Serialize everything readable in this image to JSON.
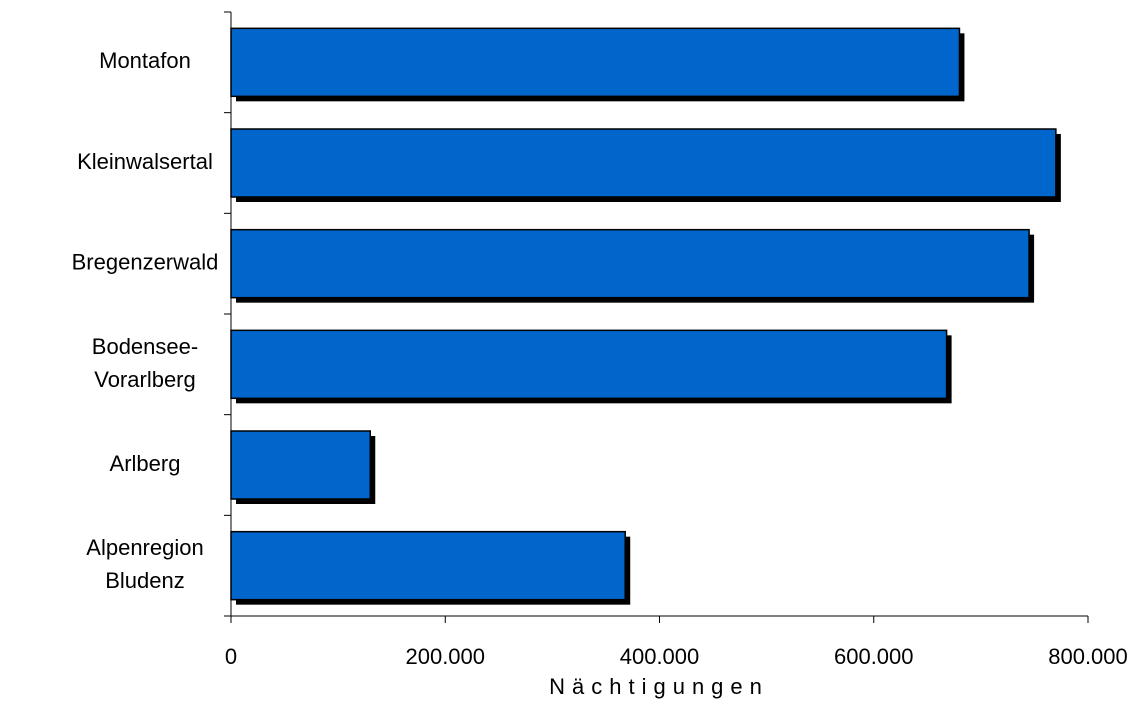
{
  "chart_data": {
    "type": "hbar",
    "categories": [
      "Montafon",
      "Kleinwalsertal",
      "Bregenzerwald",
      "Bodensee-Vorarlberg",
      "Arlberg",
      "Alpenregion Bludenz"
    ],
    "values": [
      680000,
      770000,
      745000,
      668000,
      130000,
      368000
    ],
    "color": "#0066cc",
    "xlabel": "Nächtigungen",
    "xlim": [
      0,
      800000
    ],
    "xticks": [
      0,
      {
        "value": 200000,
        "label": "200.000"
      },
      {
        "value": 400000,
        "label": "400.000"
      },
      {
        "value": 600000,
        "label": "600.000"
      },
      {
        "value": 800000,
        "label": "800.000"
      }
    ],
    "grid": false
  }
}
